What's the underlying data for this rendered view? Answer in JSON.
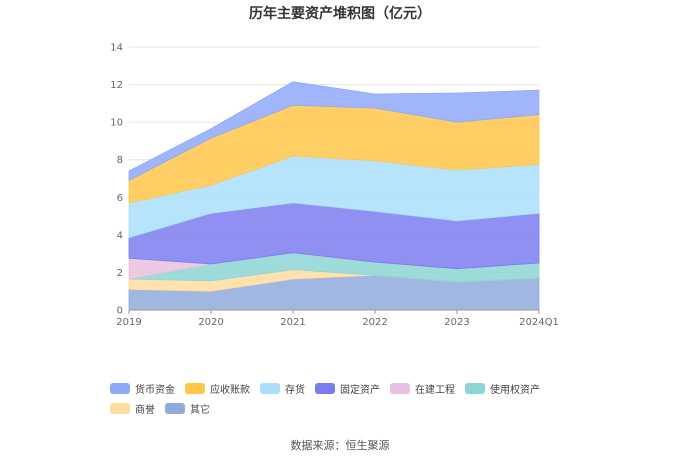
{
  "chart_data": {
    "type": "area",
    "stacked": true,
    "title": "历年主要资产堆积图（亿元）",
    "xlabel": "",
    "ylabel": "",
    "categories": [
      "2019",
      "2020",
      "2021",
      "2022",
      "2023",
      "2024Q1"
    ],
    "ylim": [
      0,
      14
    ],
    "yticks": [
      "0",
      "2",
      "4",
      "6",
      "8",
      "10",
      "12",
      "14"
    ],
    "grid": true,
    "legend_position": "bottom-left",
    "series": [
      {
        "name": "其它",
        "color": "#8FAADC",
        "values": [
          1.1,
          1.0,
          1.65,
          1.85,
          1.5,
          1.7
        ]
      },
      {
        "name": "商誉",
        "color": "#FFDDA0",
        "values": [
          0.55,
          0.55,
          0.5,
          0.0,
          0.0,
          0.0
        ]
      },
      {
        "name": "使用权资产",
        "color": "#8DD5D5",
        "values": [
          0.0,
          0.9,
          0.9,
          0.7,
          0.7,
          0.8
        ]
      },
      {
        "name": "在建工程",
        "color": "#EABFDF",
        "values": [
          1.1,
          0.0,
          0.0,
          0.0,
          0.0,
          0.0
        ]
      },
      {
        "name": "固定资产",
        "color": "#7B7CF0",
        "values": [
          1.1,
          2.7,
          2.65,
          2.7,
          2.55,
          2.65
        ]
      },
      {
        "name": "存货",
        "color": "#A9DFFB",
        "values": [
          1.85,
          1.5,
          2.5,
          2.7,
          2.7,
          2.6
        ]
      },
      {
        "name": "应收账款",
        "color": "#FFC64A",
        "values": [
          1.2,
          2.5,
          2.7,
          2.8,
          2.55,
          2.65
        ]
      },
      {
        "name": "货币资金",
        "color": "#8FA8FA",
        "values": [
          0.5,
          0.5,
          1.25,
          0.75,
          1.55,
          1.3
        ]
      }
    ],
    "legend_order": [
      "货币资金",
      "应收账款",
      "存货",
      "固定资产",
      "在建工程",
      "使用权资产",
      "商誉",
      "其它"
    ]
  },
  "source_text": "数据来源：恒生聚源"
}
